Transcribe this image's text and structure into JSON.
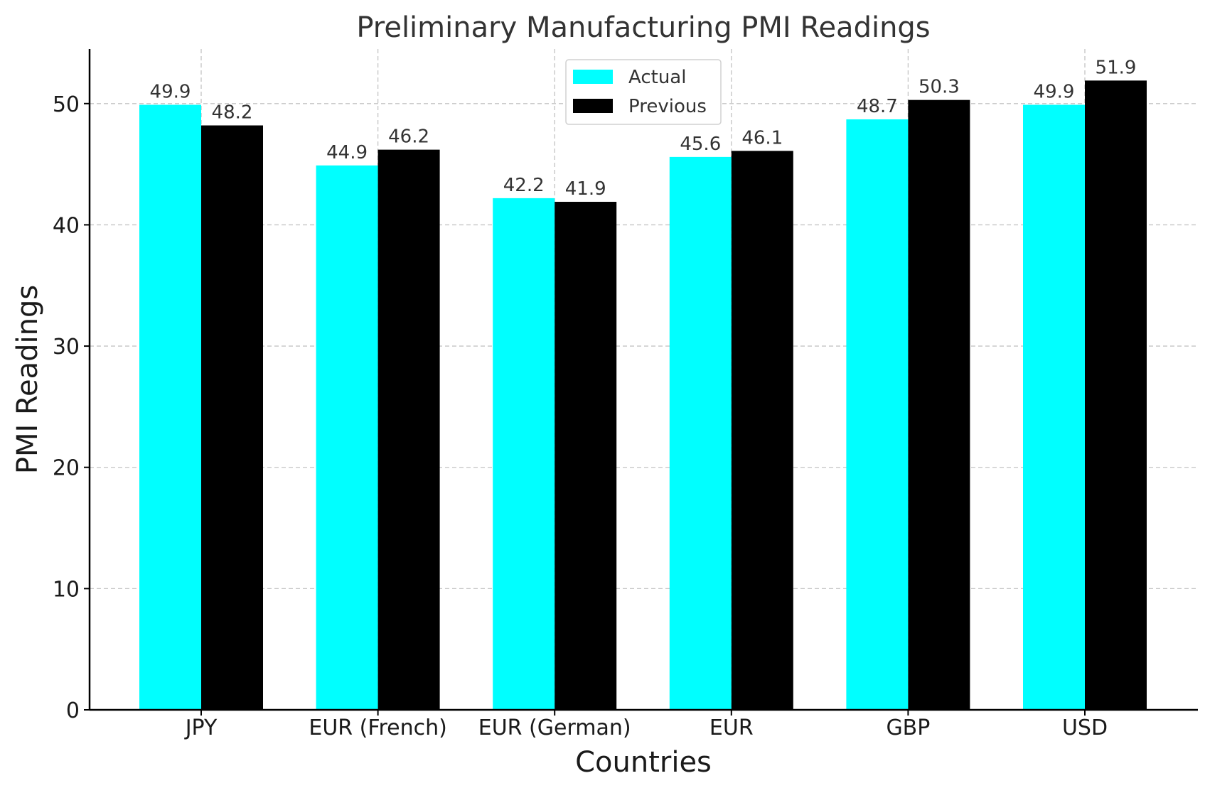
{
  "chart_data": {
    "type": "bar",
    "title": "Preliminary Manufacturing PMI Readings",
    "xlabel": "Countries",
    "ylabel": "PMI Readings",
    "categories": [
      "JPY",
      "EUR (French)",
      "EUR (German)",
      "EUR",
      "GBP",
      "USD"
    ],
    "series": [
      {
        "name": "Actual",
        "color": "#00ffff",
        "values": [
          49.9,
          44.9,
          42.2,
          45.6,
          48.7,
          49.9
        ]
      },
      {
        "name": "Previous",
        "color": "#000000",
        "values": [
          48.2,
          46.2,
          41.9,
          46.1,
          50.3,
          51.9
        ]
      }
    ],
    "ylim": [
      0,
      54.5
    ],
    "yticks": [
      0,
      10,
      20,
      30,
      40,
      50
    ],
    "grid": true,
    "legend_position": "top-center"
  }
}
